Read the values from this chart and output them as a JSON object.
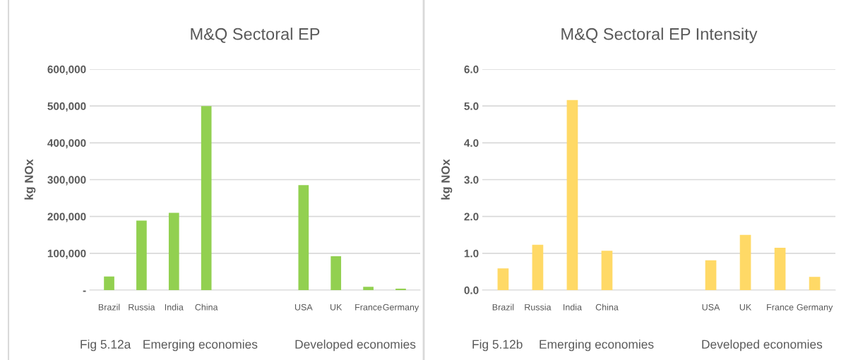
{
  "chart_data": [
    {
      "type": "bar",
      "title": "M&Q Sectoral EP",
      "ylabel": "kg NOx",
      "categories": [
        "Brazil",
        "Russia",
        "India",
        "China",
        null,
        null,
        "USA",
        "UK",
        "France",
        "Germany"
      ],
      "values": [
        37000,
        189000,
        210000,
        500000,
        null,
        null,
        285000,
        92000,
        9000,
        4000
      ],
      "color": "#92d050",
      "ylim": [
        0,
        600000
      ],
      "yticks": [
        {
          "value": 0,
          "label": "-"
        },
        {
          "value": 100000,
          "label": "100,000"
        },
        {
          "value": 200000,
          "label": "200,000"
        },
        {
          "value": 300000,
          "label": "300,000"
        },
        {
          "value": 400000,
          "label": "400,000"
        },
        {
          "value": 500000,
          "label": "500,000"
        },
        {
          "value": 600000,
          "label": "600,000"
        }
      ],
      "grid": "y",
      "annotations": [
        "Fig 5.12a",
        "Emerging economies",
        "Developed economies"
      ]
    },
    {
      "type": "bar",
      "title": "M&Q Sectoral EP Intensity",
      "ylabel": "kg NOx",
      "categories": [
        "Brazil",
        "Russia",
        "India",
        "China",
        null,
        null,
        "USA",
        "UK",
        "France",
        "Germany"
      ],
      "values": [
        0.59,
        1.23,
        5.16,
        1.07,
        null,
        null,
        0.81,
        1.5,
        1.15,
        0.36
      ],
      "color": "#ffd966",
      "ylim": [
        0,
        6
      ],
      "yticks": [
        {
          "value": 0,
          "label": "0.0"
        },
        {
          "value": 1,
          "label": "1.0"
        },
        {
          "value": 2,
          "label": "2.0"
        },
        {
          "value": 3,
          "label": "3.0"
        },
        {
          "value": 4,
          "label": "4.0"
        },
        {
          "value": 5,
          "label": "5.0"
        },
        {
          "value": 6,
          "label": "6.0"
        }
      ],
      "grid": "y",
      "annotations": [
        "Fig 5.12b",
        "Emerging economies",
        "Developed economies"
      ]
    }
  ]
}
